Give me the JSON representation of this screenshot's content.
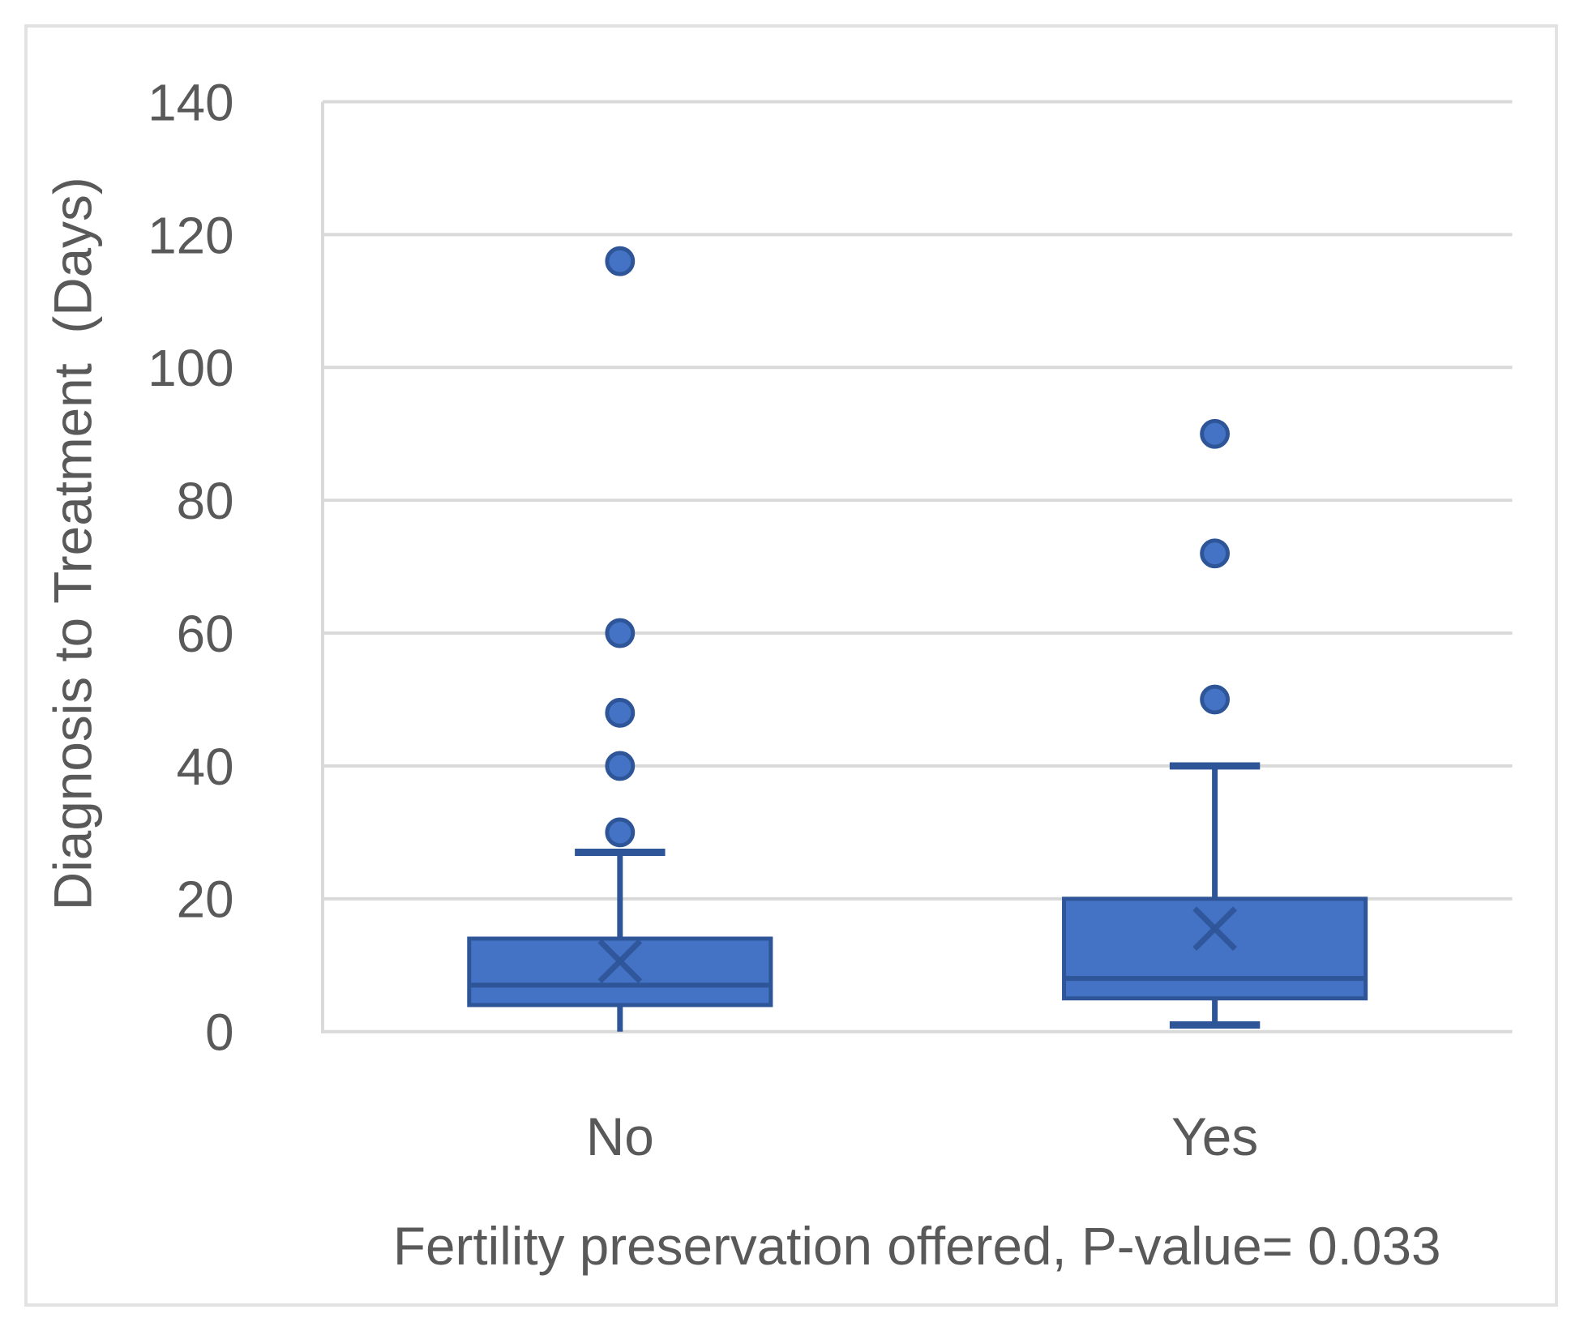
{
  "figure": {
    "kind": "excel-style box-and-whisker chart",
    "background": "#ffffff"
  },
  "chart_data": {
    "type": "box",
    "title": "",
    "xlabel": "Fertility preservation offered, P-value= 0.033",
    "ylabel": "Diagnosis to Treatment  (Days)",
    "p_value": "0.033",
    "ylim": [
      0,
      140
    ],
    "yticks": [
      0,
      20,
      40,
      60,
      80,
      100,
      120,
      140
    ],
    "grid": "horizontal",
    "legend": "none",
    "categories": [
      "No",
      "Yes"
    ],
    "groups": [
      {
        "label": "No",
        "whisker_low": 0,
        "q1": 4,
        "median": 7,
        "q3": 14,
        "whisker_high": 27,
        "mean": 10.6,
        "outliers": [
          30,
          40,
          48,
          60,
          116
        ],
        "lower_cap": false,
        "upper_cap": true
      },
      {
        "label": "Yes",
        "whisker_low": 1,
        "q1": 5,
        "median": 8,
        "q3": 20,
        "whisker_high": 40,
        "mean": 15.5,
        "outliers": [
          50,
          72,
          90
        ],
        "lower_cap": true,
        "upper_cap": true
      }
    ],
    "colors": {
      "box_fill": "#4472C4",
      "box_stroke": "#2E5597",
      "gridline": "#D9D9D9",
      "axis_line": "#D9D9D9",
      "text": "#595959",
      "figure_border": "#E2E2E2"
    }
  }
}
